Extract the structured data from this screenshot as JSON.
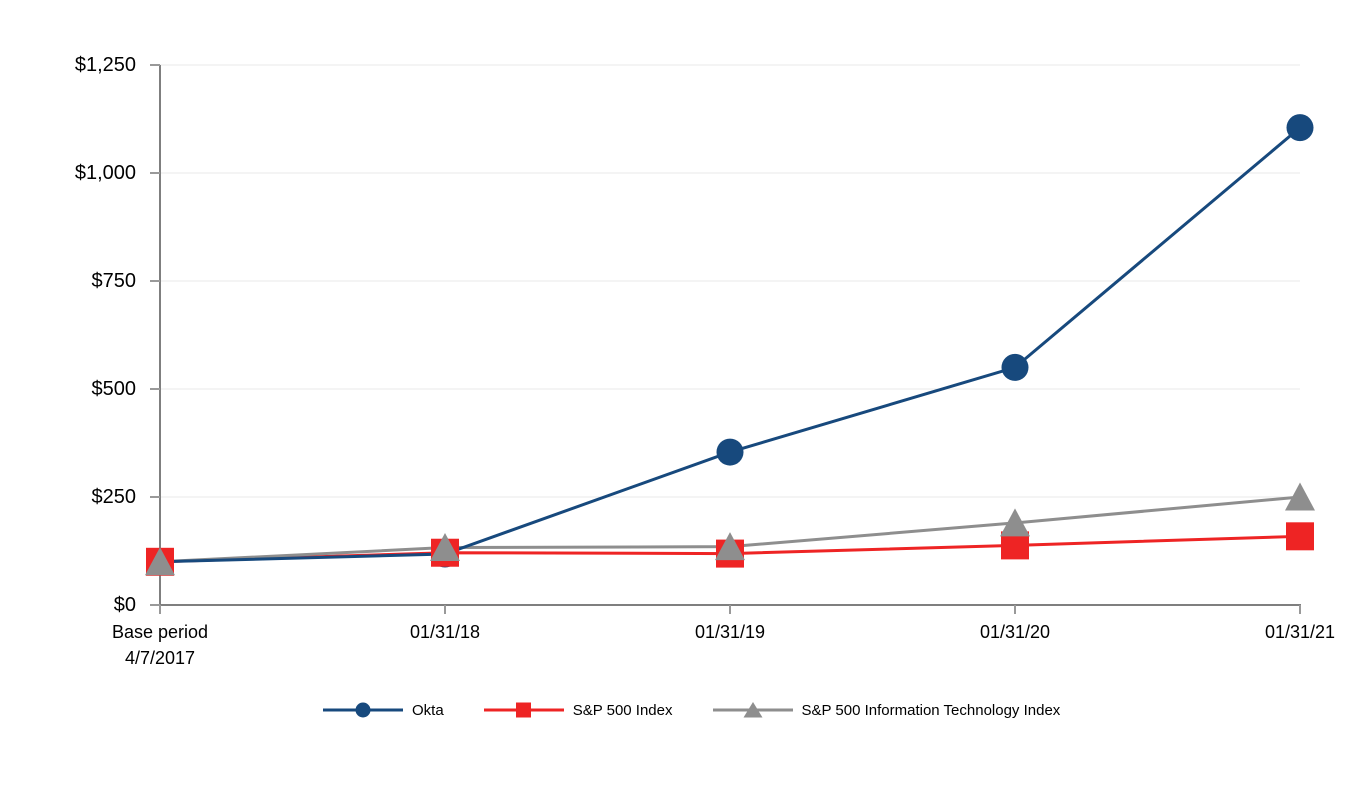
{
  "chart_data": {
    "type": "line",
    "x": [
      "4/7/2017",
      "01/31/18",
      "01/31/19",
      "01/31/20",
      "01/31/21"
    ],
    "base_period_label": {
      "line1": "Base period",
      "line2": "4/7/2017"
    },
    "x_tick_labels": [
      "01/31/18",
      "01/31/19",
      "01/31/20",
      "01/31/21"
    ],
    "y_tick_labels": [
      "$1,250",
      "$1,000",
      "$750",
      "$500",
      "$250",
      "$0"
    ],
    "y_tick_values": [
      1250,
      1000,
      750,
      500,
      250,
      0
    ],
    "ylim": [
      0,
      1250
    ],
    "grid": true,
    "legend_position": "bottom",
    "series": [
      {
        "name": "Okta",
        "color": "#17497D",
        "marker": "circle",
        "values": [
          100,
          118,
          354,
          550,
          1105
        ]
      },
      {
        "name": "S&P 500 Index",
        "color": "#EE2424",
        "marker": "square",
        "values": [
          100,
          121,
          119,
          138,
          159
        ]
      },
      {
        "name": "S&P 500 Information Technology Index",
        "color": "#8E8E8E",
        "marker": "triangle",
        "values": [
          100,
          133,
          135,
          190,
          250
        ]
      }
    ],
    "colors": {
      "axis": "#7F7F7F",
      "tick": "#999999",
      "grid": "#E9E9E9",
      "text": "#000000",
      "background": "#FFFFFF"
    }
  }
}
